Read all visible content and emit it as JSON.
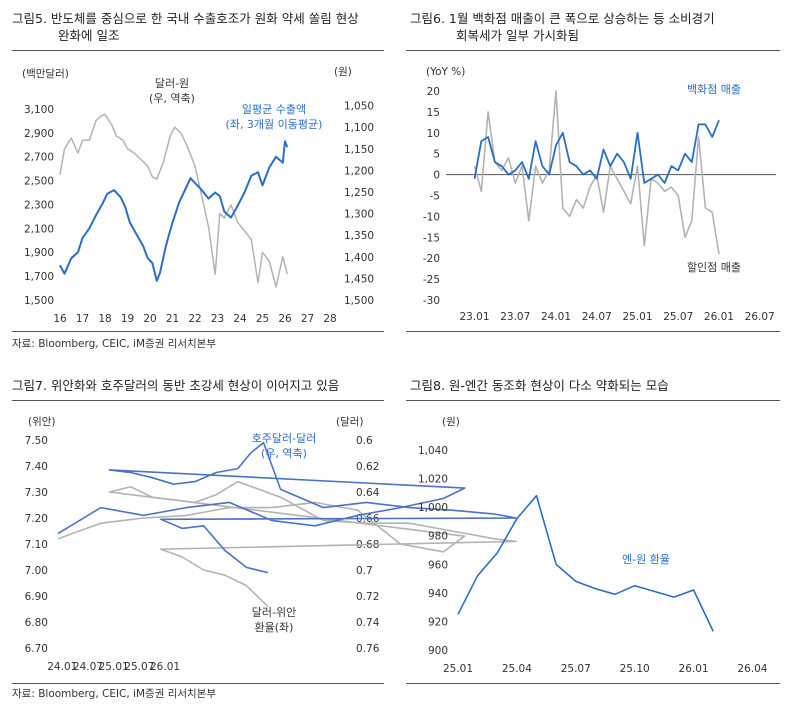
{
  "charts": [
    {
      "title_line1": "그림5.   반도체를 중심으로 한 국내 수출호조가 원화 약세 쏠림 현상",
      "title_line2": "완화에 일조",
      "source": "자료: Bloomberg, CEIC, iM증권 리서치본부",
      "chart_data": {
        "type": "line",
        "left_unit": "(백만달러)",
        "right_unit": "(원)",
        "x_ticks": [
          "16",
          "17",
          "18",
          "19",
          "20",
          "21",
          "22",
          "23",
          "24",
          "25",
          "26",
          "27",
          "28"
        ],
        "xlim": [
          16,
          28
        ],
        "left_ticks": [
          "3,100",
          "2,900",
          "2,700",
          "2,500",
          "2,300",
          "2,100",
          "1,900",
          "1,700",
          "1,500"
        ],
        "left_ylim": [
          1500,
          3200
        ],
        "right_ticks": [
          "1,050",
          "1,100",
          "1,150",
          "1,200",
          "1,250",
          "1,300",
          "1,350",
          "1,400",
          "1,450",
          "1,500"
        ],
        "right_ylim": [
          1030,
          1500
        ],
        "right_inverted": true,
        "series": [
          {
            "name": "일평균 수출액 (좌, 3개월 이동평균)",
            "label_lines": [
              "일평균 수출액",
              "(좌, 3개월 이동평균)"
            ],
            "axis": "left",
            "color": "#2a6ec6",
            "x": [
              16.0,
              16.2,
              16.5,
              16.8,
              17.0,
              17.3,
              17.6,
              17.9,
              18.1,
              18.4,
              18.7,
              18.9,
              19.1,
              19.4,
              19.7,
              19.9,
              20.1,
              20.3,
              20.45,
              20.7,
              21.0,
              21.3,
              21.6,
              21.8,
              22.0,
              22.3,
              22.6,
              22.9,
              23.1,
              23.3,
              23.6,
              23.9,
              24.2,
              24.5,
              24.8,
              25.0,
              25.3,
              25.6,
              25.9,
              26.0,
              26.1
            ],
            "values": [
              1790,
              1720,
              1850,
              1900,
              2020,
              2100,
              2210,
              2310,
              2390,
              2420,
              2360,
              2280,
              2150,
              2050,
              1950,
              1850,
              1810,
              1660,
              1730,
              1950,
              2150,
              2320,
              2440,
              2520,
              2480,
              2420,
              2350,
              2400,
              2370,
              2240,
              2190,
              2290,
              2400,
              2540,
              2570,
              2460,
              2610,
              2700,
              2650,
              2830,
              2780
            ]
          },
          {
            "name": "달러-원 (우, 역축)",
            "label_lines": [
              "달러-원",
              "(우, 역축)"
            ],
            "axis": "right",
            "color": "#b3b3b3",
            "x": [
              16.0,
              16.2,
              16.5,
              16.8,
              17.0,
              17.3,
              17.6,
              17.8,
              18.0,
              18.3,
              18.5,
              18.8,
              19.0,
              19.3,
              19.6,
              19.9,
              20.1,
              20.3,
              20.6,
              20.9,
              21.1,
              21.4,
              21.7,
              22.0,
              22.3,
              22.6,
              22.9,
              23.1,
              23.3,
              23.6,
              23.9,
              24.2,
              24.5,
              24.8,
              25.0,
              25.3,
              25.6,
              25.9,
              26.1
            ],
            "values": [
              1210,
              1150,
              1125,
              1160,
              1130,
              1130,
              1085,
              1075,
              1070,
              1095,
              1120,
              1130,
              1150,
              1160,
              1175,
              1190,
              1215,
              1220,
              1180,
              1120,
              1100,
              1115,
              1150,
              1190,
              1260,
              1330,
              1440,
              1300,
              1310,
              1280,
              1320,
              1340,
              1360,
              1460,
              1390,
              1410,
              1470,
              1400,
              1440
            ]
          }
        ]
      }
    },
    {
      "title_line1": "그림6.   1월  백화점  매출이  큰  폭으로  상승하는  등  소비경기",
      "title_line2": "회복세가 일부 가시화됨",
      "chart_data": {
        "type": "line",
        "y_unit": "(YoY %)",
        "x_ticks": [
          "23.01",
          "23.07",
          "24.01",
          "24.07",
          "25.01",
          "25.07",
          "26.01",
          "26.07"
        ],
        "y_ticks": [
          "20",
          "15",
          "10",
          "5",
          "0",
          "-5",
          "-10",
          "-15",
          "-20",
          "-25",
          "-30"
        ],
        "ylim": [
          -30,
          20
        ],
        "series": [
          {
            "name": "백화점 매출",
            "color": "#2a6ec6",
            "x": [
              23.01,
              23.02,
              23.03,
              23.04,
              23.05,
              23.06,
              23.07,
              23.08,
              23.09,
              23.1,
              23.11,
              23.12,
              24.01,
              24.02,
              24.03,
              24.04,
              24.05,
              24.06,
              24.07,
              24.08,
              24.09,
              24.1,
              24.11,
              24.12,
              25.01,
              25.02,
              25.03,
              25.04,
              25.05,
              25.06,
              25.07,
              25.08,
              25.09,
              25.1,
              25.11,
              25.12,
              26.01
            ],
            "values": [
              -1,
              8,
              9,
              3,
              2,
              0,
              1,
              3,
              -1,
              8,
              2,
              0,
              7,
              10,
              3,
              2,
              0,
              1,
              -1,
              6,
              2,
              5,
              3,
              -1,
              10,
              -2,
              -1,
              0,
              -2,
              2,
              1,
              5,
              3,
              12,
              12,
              9,
              13
            ]
          },
          {
            "name": "할인점 매출",
            "color": "#b3b3b3",
            "x": [
              23.01,
              23.02,
              23.03,
              23.04,
              23.05,
              23.06,
              23.07,
              23.08,
              23.09,
              23.1,
              23.11,
              23.12,
              24.01,
              24.02,
              24.03,
              24.04,
              24.05,
              24.06,
              24.07,
              24.08,
              24.09,
              24.1,
              24.11,
              24.12,
              25.01,
              25.02,
              25.03,
              25.04,
              25.05,
              25.06,
              25.07,
              25.08,
              25.09,
              25.1,
              25.11,
              25.12,
              26.01
            ],
            "values": [
              2,
              -4,
              15,
              3,
              1,
              4,
              -2,
              2,
              -11,
              2,
              -2,
              1,
              20,
              -8,
              -10,
              -6,
              -8,
              -3,
              0,
              -9,
              2,
              -1,
              -4,
              -7,
              2,
              -17,
              -1,
              -2,
              -4,
              -3,
              -5,
              -15,
              -11,
              9,
              -8,
              -9,
              -19
            ]
          }
        ]
      }
    },
    {
      "title_line1": "그림7.   위안화와 호주달러의 동반 초강세 현상이 이어지고 있음",
      "source": "자료: Bloomberg, CEIC, iM증권 리서치본부",
      "chart_data": {
        "type": "line",
        "left_unit": "(위안)",
        "right_unit": "(달러)",
        "x_ticks": [
          "24.01",
          "24.07",
          "25.01",
          "25.07",
          "26.01"
        ],
        "left_ticks": [
          "7.50",
          "7.40",
          "7.30",
          "7.20",
          "7.10",
          "7.00",
          "6.90",
          "6.80",
          "6.70"
        ],
        "left_ylim": [
          6.7,
          7.5
        ],
        "right_ticks": [
          "0.6",
          "0.62",
          "0.64",
          "0.66",
          "0.68",
          "0.7",
          "0.72",
          "0.74",
          "0.76"
        ],
        "right_ylim": [
          0.6,
          0.76
        ],
        "right_inverted": true,
        "series": [
          {
            "name": "호주달러-달러 (우, 역축)",
            "label_lines": [
              "호주달러-달러",
              "(우, 역축)"
            ],
            "axis": "right",
            "color": "#4a73c4",
            "x": [
              24.0,
              24.1,
              24.2,
              24.3,
              24.4,
              24.5,
              24.6,
              24.7,
              24.8,
              24.9,
              24.95,
              25.0,
              25.05,
              25.1,
              25.15,
              25.2,
              25.25,
              25.3,
              25.33,
              25.36,
              25.4,
              25.5,
              25.6,
              25.7,
              25.8,
              25.9,
              25.95,
              26.0,
              26.05,
              26.1,
              26.15,
              26.2,
              26.25
            ],
            "values": [
              0.672,
              0.652,
              0.658,
              0.652,
              0.648,
              0.662,
              0.666,
              0.658,
              0.652,
              0.645,
              0.637,
              0.623,
              0.625,
              0.629,
              0.634,
              0.632,
              0.625,
              0.622,
              0.61,
              0.602,
              0.638,
              0.652,
              0.648,
              0.652,
              0.654,
              0.657,
              0.66,
              0.661,
              0.668,
              0.666,
              0.685,
              0.698,
              0.702
            ]
          },
          {
            "name": "달러-위안 환율(좌)",
            "label_lines": [
              "달러-위안",
              "환율(좌)"
            ],
            "axis": "left",
            "color": "#b3b3b3",
            "x": [
              24.0,
              24.1,
              24.2,
              24.3,
              24.4,
              24.5,
              24.6,
              24.7,
              24.8,
              24.9,
              24.95,
              25.0,
              25.05,
              25.1,
              25.15,
              25.2,
              25.25,
              25.3,
              25.4,
              25.5,
              25.6,
              25.7,
              25.8,
              25.9,
              25.95,
              26.0,
              26.05,
              26.1,
              26.15,
              26.2,
              26.25
            ],
            "values": [
              7.12,
              7.18,
              7.2,
              7.21,
              7.24,
              7.24,
              7.26,
              7.23,
              7.1,
              7.07,
              7.13,
              7.3,
              7.32,
              7.28,
              7.27,
              7.26,
              7.29,
              7.34,
              7.28,
              7.19,
              7.18,
              7.18,
              7.15,
              7.12,
              7.11,
              7.08,
              7.05,
              7.0,
              6.98,
              6.94,
              6.86
            ]
          }
        ]
      }
    },
    {
      "title_line1": "그림8.   원-엔간 동조화 현상이 다소 약화되는 모습",
      "chart_data": {
        "type": "line",
        "y_unit": "(원)",
        "x_ticks": [
          "25.01",
          "25.04",
          "25.07",
          "25.10",
          "26.01",
          "26.04"
        ],
        "y_ticks": [
          "1,040",
          "1,020",
          "1,000",
          "980",
          "960",
          "940",
          "920",
          "900"
        ],
        "ylim": [
          900,
          1040
        ],
        "series": [
          {
            "name": "엔-원 환율",
            "color": "#2a6ec6",
            "x": [
              25.01,
              25.02,
              25.03,
              25.04,
              25.05,
              25.06,
              25.07,
              25.08,
              25.09,
              25.1,
              25.11,
              25.12,
              26.01,
              26.02
            ],
            "values": [
              925,
              952,
              968,
              992,
              1008,
              960,
              948,
              943,
              939,
              945,
              941,
              937,
              942,
              913
            ]
          }
        ]
      }
    }
  ]
}
